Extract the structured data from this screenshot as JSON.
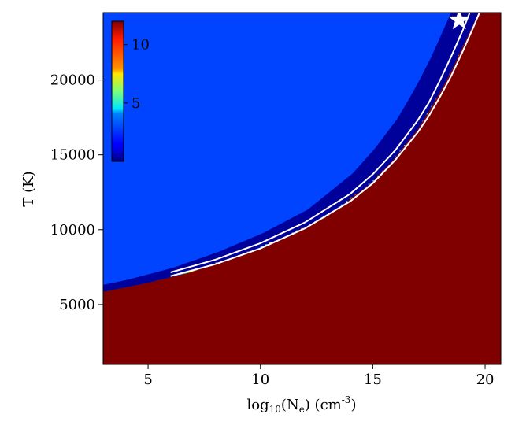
{
  "chart_data": {
    "type": "heatmap",
    "title": "",
    "xlabel": {
      "prefix": "log",
      "prefix_sub": "10",
      "mid": "(N",
      "mid_sub": "e",
      "suffix": ") (cm",
      "suffix_sup": "-3",
      "end": ")"
    },
    "ylabel": "T (K)",
    "xlim": [
      3.0,
      20.7
    ],
    "ylim": [
      1000,
      24500
    ],
    "xticks": [
      5,
      10,
      15,
      20
    ],
    "yticks": [
      5000,
      10000,
      15000,
      20000
    ],
    "colorbar": {
      "colormap": "jet",
      "range": [
        0,
        12
      ],
      "ticks": [
        5,
        10
      ],
      "placement": "upper-left inside plot"
    },
    "regions": {
      "low_density_value": 2.3,
      "high_density_value": 12,
      "boundary_curve": {
        "x": [
          3.0,
          5,
          7,
          9,
          11,
          13,
          15,
          16,
          17,
          17.5,
          18,
          18.5,
          19,
          19.5,
          20,
          20.7
        ],
        "T": [
          5850,
          6450,
          7200,
          8200,
          9400,
          10900,
          13200,
          14800,
          16700,
          17900,
          19200,
          20600,
          22200,
          23800,
          25500,
          27500
        ]
      },
      "stripes": {
        "band_start_T": 6200,
        "period_x": 0.4
      }
    },
    "contours": {
      "color": "#ffffff",
      "x_start": 6.0,
      "levels": [
        {
          "x": [
            6.0,
            8,
            10,
            12,
            14,
            15,
            16,
            17,
            17.5,
            18,
            18.5,
            19,
            19.5
          ],
          "T": [
            7150,
            8000,
            9100,
            10500,
            12400,
            13700,
            15300,
            17300,
            18500,
            20000,
            21600,
            23300,
            25200
          ]
        },
        {
          "x": [
            6.0,
            8,
            10,
            12,
            14,
            15,
            16,
            17,
            17.5,
            18,
            18.5,
            19,
            19.5,
            20
          ],
          "T": [
            6900,
            7700,
            8750,
            10100,
            11900,
            13100,
            14650,
            16500,
            17600,
            18900,
            20300,
            21900,
            23600,
            25400
          ]
        }
      ]
    },
    "marker": {
      "shape": "star",
      "color": "#ffffff",
      "x": 18.85,
      "T": 24000
    }
  }
}
